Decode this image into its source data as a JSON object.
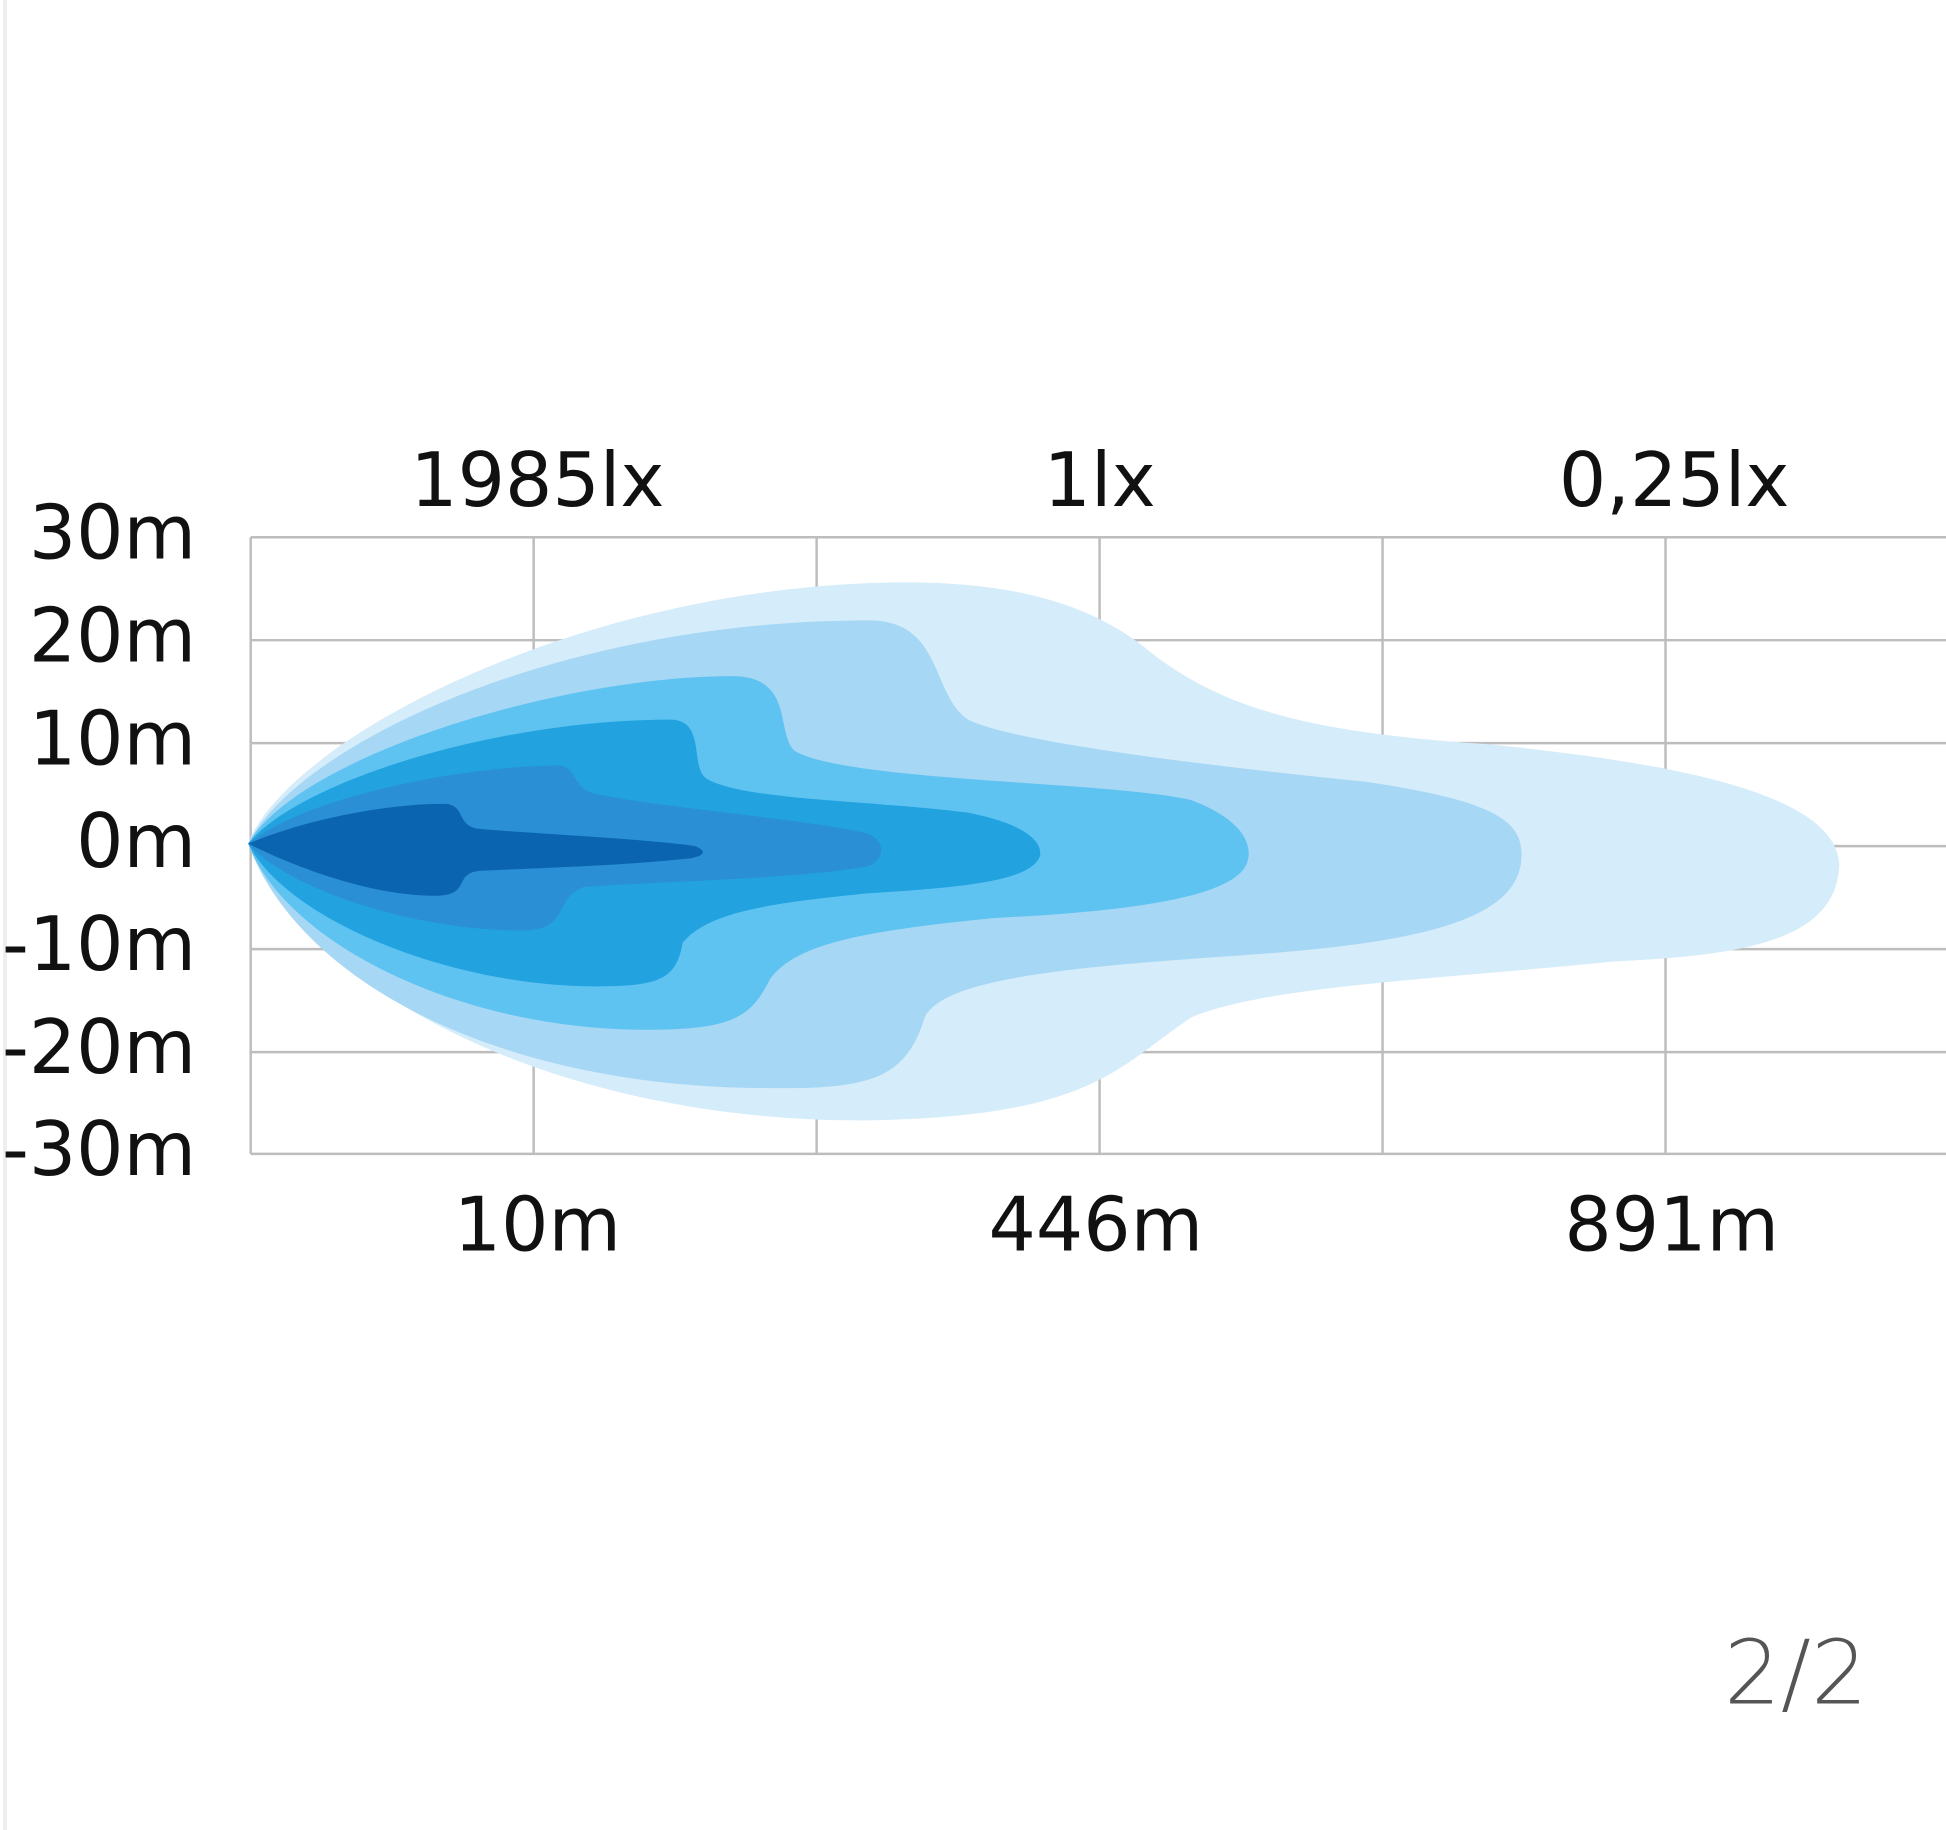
{
  "y_axis_labels": [
    "30m",
    "20m",
    "10m",
    "0m",
    "-10m",
    "-20m",
    "-30m"
  ],
  "lux_labels": [
    "1985lx",
    "1lx",
    "0,25lx"
  ],
  "distance_labels": [
    "10m",
    "446m",
    "891m"
  ],
  "page_indicator": "2/2"
}
